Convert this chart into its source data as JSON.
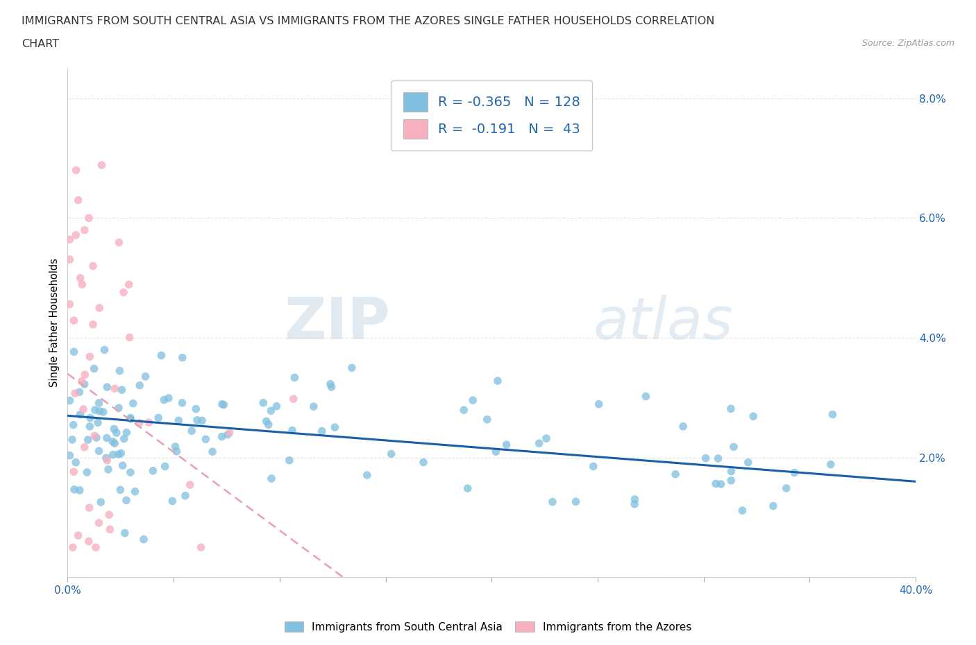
{
  "title_line1": "IMMIGRANTS FROM SOUTH CENTRAL ASIA VS IMMIGRANTS FROM THE AZORES SINGLE FATHER HOUSEHOLDS CORRELATION",
  "title_line2": "CHART",
  "source": "Source: ZipAtlas.com",
  "watermark_zip": "ZIP",
  "watermark_atlas": "atlas",
  "series1_label": "Immigrants from South Central Asia",
  "series2_label": "Immigrants from the Azores",
  "R1": -0.365,
  "N1": 128,
  "R2": -0.191,
  "N2": 43,
  "color1": "#7fbfdf",
  "color2": "#f7b0c0",
  "trendline1_color": "#1a5fa8",
  "trendline2_color": "#e8a0b0",
  "xlim": [
    0.0,
    0.4
  ],
  "ylim": [
    0.0,
    0.085
  ],
  "xticks": [
    0.0,
    0.05,
    0.1,
    0.15,
    0.2,
    0.25,
    0.3,
    0.35,
    0.4
  ],
  "yticks": [
    0.0,
    0.02,
    0.04,
    0.06,
    0.08
  ],
  "grid_color": "#e0e0e0",
  "bg_color": "#ffffff"
}
